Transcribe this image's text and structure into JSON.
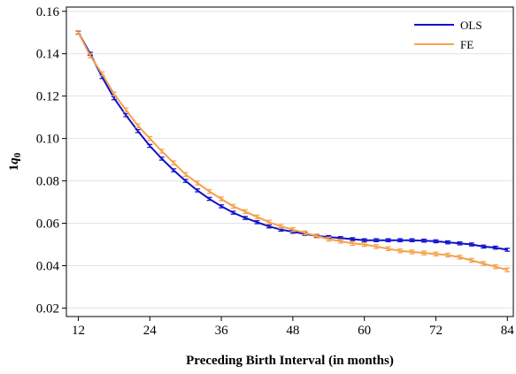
{
  "chart_data": {
    "type": "line",
    "title": "",
    "xlabel": "Preceding Birth Interval (in months)",
    "ylabel_main": "q",
    "ylabel_pre": "1",
    "ylabel_sub": "0",
    "xlim": [
      10,
      85
    ],
    "ylim": [
      0.016,
      0.162
    ],
    "xticks": [
      {
        "value": 12,
        "label": "12"
      },
      {
        "value": 24,
        "label": "24"
      },
      {
        "value": 36,
        "label": "36"
      },
      {
        "value": 48,
        "label": "48"
      },
      {
        "value": 60,
        "label": "60"
      },
      {
        "value": 72,
        "label": "72"
      },
      {
        "value": 84,
        "label": "84"
      }
    ],
    "yticks": [
      {
        "value": 0.02,
        "label": "0.02"
      },
      {
        "value": 0.04,
        "label": "0.04"
      },
      {
        "value": 0.06,
        "label": "0.06"
      },
      {
        "value": 0.08,
        "label": "0.08"
      },
      {
        "value": 0.1,
        "label": "0.10"
      },
      {
        "value": 0.12,
        "label": "0.12"
      },
      {
        "value": 0.14,
        "label": "0.14"
      },
      {
        "value": 0.16,
        "label": "0.16"
      }
    ],
    "grid": "horizontal",
    "legend_position": "top-right",
    "series": [
      {
        "name": "OLS",
        "color": "#1010cc",
        "x": [
          12,
          14,
          16,
          18,
          20,
          22,
          24,
          26,
          28,
          30,
          32,
          34,
          36,
          38,
          40,
          42,
          44,
          46,
          48,
          50,
          52,
          54,
          56,
          58,
          60,
          62,
          64,
          66,
          68,
          70,
          72,
          74,
          76,
          78,
          80,
          82,
          84
        ],
        "y": [
          0.15,
          0.14,
          0.129,
          0.119,
          0.111,
          0.1035,
          0.0965,
          0.0905,
          0.085,
          0.08,
          0.0755,
          0.0715,
          0.068,
          0.065,
          0.0625,
          0.0605,
          0.0585,
          0.057,
          0.056,
          0.055,
          0.054,
          0.0535,
          0.053,
          0.0525,
          0.052,
          0.052,
          0.052,
          0.052,
          0.052,
          0.0518,
          0.0515,
          0.051,
          0.0505,
          0.05,
          0.049,
          0.0485,
          0.0475
        ],
        "err": 0.0007
      },
      {
        "name": "FE",
        "color": "#f5a14a",
        "x": [
          12,
          14,
          16,
          18,
          20,
          22,
          24,
          26,
          28,
          30,
          32,
          34,
          36,
          38,
          40,
          42,
          44,
          46,
          48,
          50,
          52,
          54,
          56,
          58,
          60,
          62,
          64,
          66,
          68,
          70,
          72,
          74,
          76,
          78,
          80,
          82,
          84
        ],
        "y": [
          0.15,
          0.139,
          0.1305,
          0.121,
          0.1135,
          0.106,
          0.1,
          0.094,
          0.0885,
          0.083,
          0.079,
          0.075,
          0.0715,
          0.068,
          0.0655,
          0.063,
          0.0605,
          0.0585,
          0.057,
          0.0555,
          0.054,
          0.0525,
          0.0515,
          0.0505,
          0.05,
          0.049,
          0.048,
          0.047,
          0.0465,
          0.046,
          0.0455,
          0.045,
          0.044,
          0.0425,
          0.041,
          0.0395,
          0.038
        ],
        "err": 0.0009
      }
    ]
  }
}
